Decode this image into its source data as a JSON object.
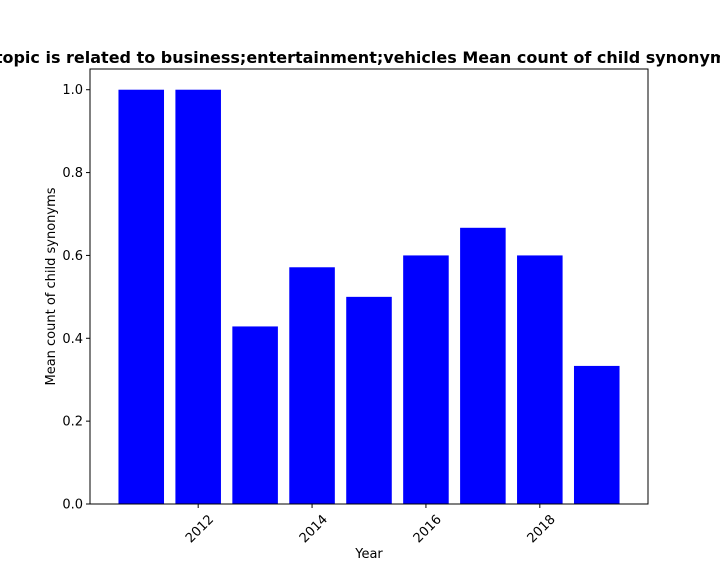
{
  "chart_data": {
    "type": "bar",
    "title": "Pages where the topic is related to business;entertainment;vehicles Mean count of child synonyms in pages per year",
    "xlabel": "Year",
    "ylabel": "Mean count of child synonyms",
    "x": [
      2011,
      2012,
      2013,
      2014,
      2015,
      2016,
      2017,
      2018,
      2019
    ],
    "values": [
      1.0,
      1.0,
      0.4286,
      0.5714,
      0.5,
      0.6,
      0.6667,
      0.6,
      0.3333
    ],
    "xlim": [
      2010.1,
      2019.9
    ],
    "ylim": [
      0,
      1.05
    ],
    "xticks": [
      "2012",
      "2014",
      "2016",
      "2018"
    ],
    "yticks": [
      "0.0",
      "0.2",
      "0.4",
      "0.6",
      "0.8",
      "1.0"
    ],
    "bar_color": "#0000ff",
    "grid": false,
    "legend": "none"
  }
}
